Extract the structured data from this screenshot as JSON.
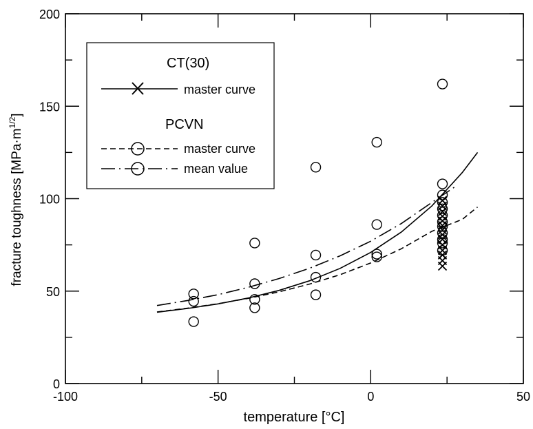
{
  "chart_data": {
    "type": "scatter",
    "xlabel": "temperature [°C]",
    "ylabel": "fracture toughness [MPa·m",
    "ylabel_sup": "1/2",
    "ylabel_end": "]",
    "xlim": [
      -100,
      50
    ],
    "ylim": [
      0,
      200
    ],
    "x_ticks": [
      -100,
      -50,
      0,
      50
    ],
    "y_ticks": [
      0,
      50,
      100,
      150,
      200
    ],
    "x_tick_labels": [
      "-100",
      "-50",
      "0",
      "50"
    ],
    "y_tick_labels": [
      "0",
      "50",
      "100",
      "150",
      "200"
    ],
    "grid": false,
    "legend_position": "top-left",
    "legend": {
      "group1_title": "CT(30)",
      "group1_entry": "master curve",
      "group2_title": "PCVN",
      "group2_entry1": "master curve",
      "group2_entry2": "mean value"
    },
    "series": [
      {
        "legend_group": "CT(30)",
        "name": "master curve",
        "kind": "curve",
        "style": "solid",
        "x": [
          -70,
          -60,
          -50,
          -40,
          -30,
          -20,
          -10,
          0,
          10,
          20,
          30,
          35
        ],
        "y": [
          38.6,
          40.6,
          43.1,
          46.3,
          50.4,
          55.6,
          62.3,
          70.9,
          81.9,
          96.0,
          114.1,
          125.0
        ]
      },
      {
        "legend_group": "PCVN",
        "name": "master curve",
        "kind": "curve",
        "style": "dashed",
        "x": [
          -70,
          -60,
          -50,
          -40,
          -30,
          -20,
          -10,
          0,
          10,
          20,
          30,
          35
        ],
        "y": [
          38.7,
          40.8,
          43.2,
          46.1,
          49.6,
          53.8,
          58.9,
          65.2,
          72.9,
          82.3,
          88.8,
          95.5
        ]
      },
      {
        "legend_group": "PCVN",
        "name": "mean value",
        "kind": "curve",
        "style": "dash-dot",
        "x": [
          -70,
          -60,
          -50,
          -40,
          -30,
          -20,
          -10,
          0,
          10,
          20,
          28
        ],
        "y": [
          42.2,
          44.9,
          48.1,
          52.1,
          56.8,
          62.4,
          69.1,
          77.0,
          86.5,
          97.9,
          106.9
        ]
      },
      {
        "legend_group": "PCVN",
        "kind": "points",
        "marker": "circle",
        "x": [
          -58,
          -58,
          -58,
          -38,
          -38,
          -38,
          -38,
          -18,
          -18,
          -18,
          -18,
          2,
          2,
          2,
          2,
          23.5,
          23.5,
          23.5,
          23.5,
          23.5,
          23.5,
          23.5,
          23.5,
          23.5,
          23.5,
          23.5,
          23.5
        ],
        "y": [
          48.5,
          44.5,
          33.5,
          76,
          54,
          45.5,
          41,
          117,
          69.5,
          57.5,
          48,
          130.5,
          86,
          70,
          68.5,
          162,
          108,
          102,
          98,
          94.5,
          91,
          87.5,
          85,
          81.5,
          78,
          76,
          72
        ]
      },
      {
        "legend_group": "CT(30)",
        "kind": "points",
        "marker": "x",
        "x": [
          23.5,
          23.5,
          23.5,
          23.5,
          23.5,
          23.5,
          23.5,
          23.5,
          23.5,
          23.5,
          23.5,
          23.5,
          23.5,
          23.5
        ],
        "y": [
          99,
          96,
          93,
          90.5,
          88,
          85.5,
          83,
          80.5,
          78,
          75,
          72,
          69.5,
          66.5,
          63.5
        ]
      }
    ]
  }
}
